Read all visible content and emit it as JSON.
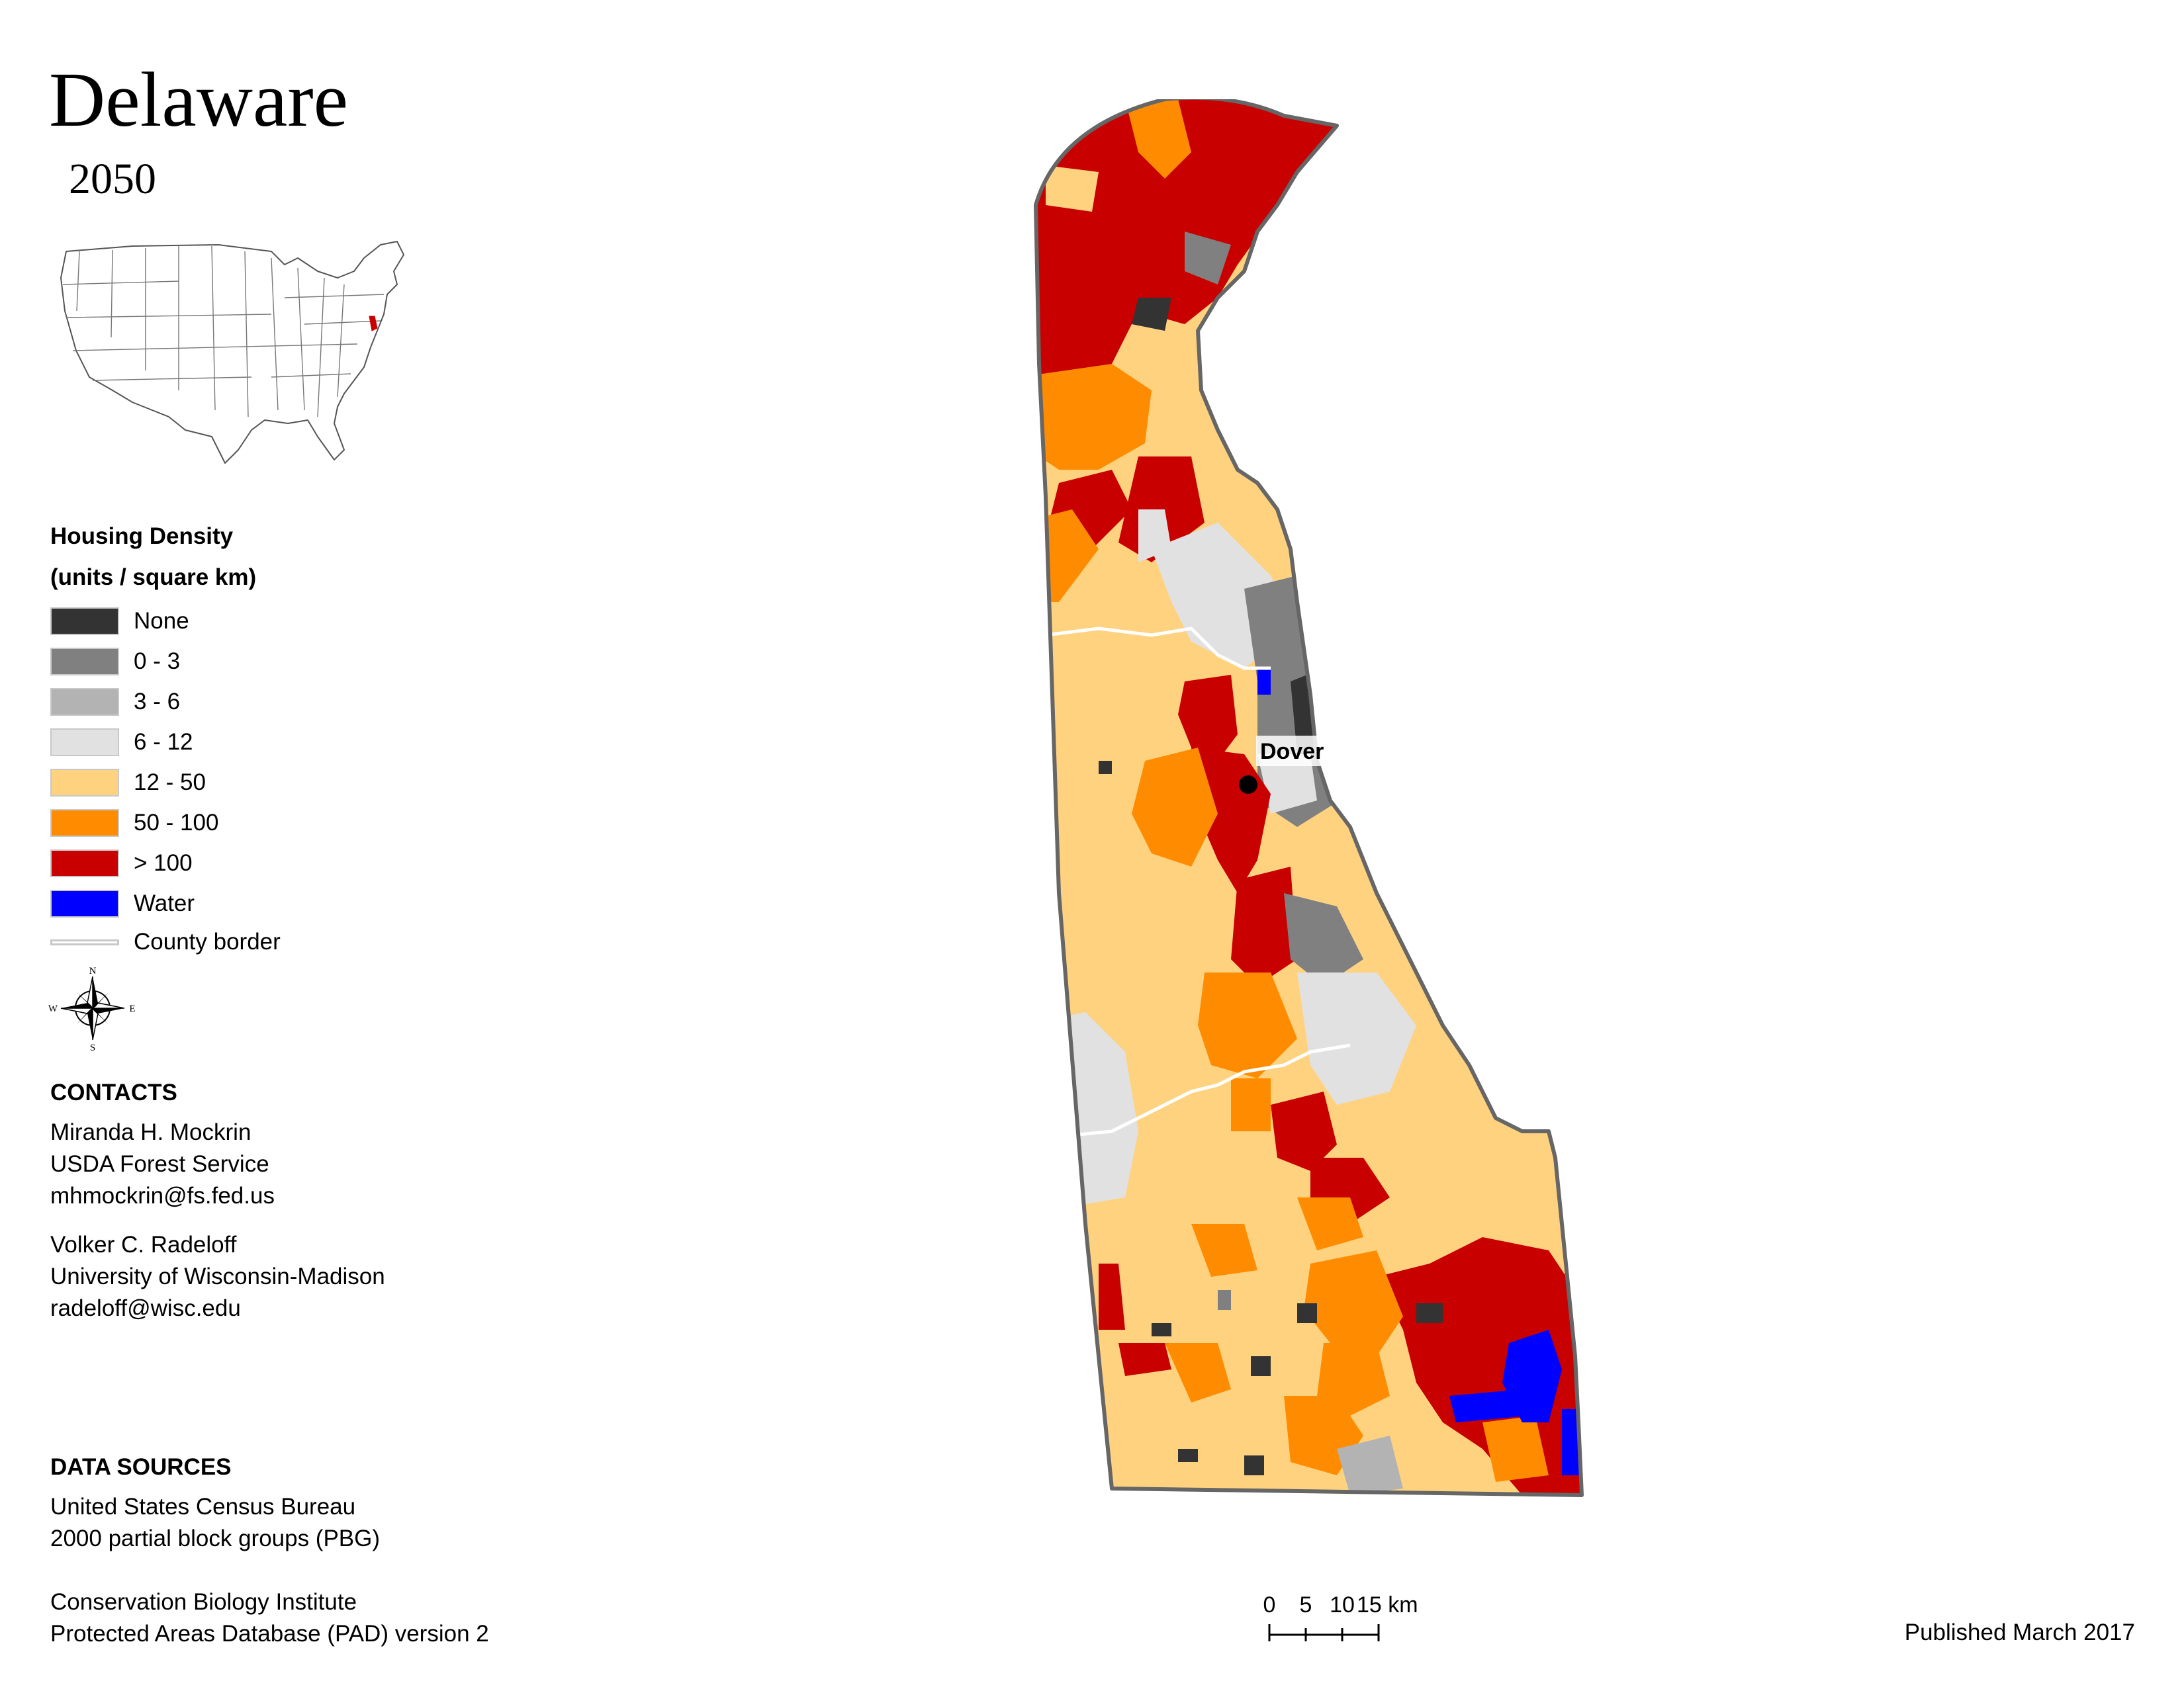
{
  "title": "Delaware",
  "subtitle": "2050",
  "legend": {
    "title_line1": "Housing Density",
    "title_line2": "(units / square km)",
    "items": [
      {
        "label": "None",
        "color": "#333333"
      },
      {
        "label": "0 - 3",
        "color": "#808080"
      },
      {
        "label": "3 - 6",
        "color": "#b3b3b3"
      },
      {
        "label": "6 - 12",
        "color": "#e1e1e1"
      },
      {
        "label": "12 - 50",
        "color": "#ffd280"
      },
      {
        "label": "50 - 100",
        "color": "#ff8c00"
      },
      {
        "label": "> 100",
        "color": "#c80000"
      },
      {
        "label": "Water",
        "color": "#0000ff"
      }
    ],
    "county_border_label": "County border"
  },
  "compass": {
    "n": "N",
    "s": "S",
    "e": "E",
    "w": "W"
  },
  "contacts": {
    "heading": "CONTACTS",
    "person1": {
      "name": "Miranda H. Mockrin",
      "org": "USDA Forest Service",
      "email": "mhmockrin@fs.fed.us"
    },
    "person2": {
      "name": "Volker C. Radeloff",
      "org": "University of Wisconsin-Madison",
      "email": "radeloff@wisc.edu"
    }
  },
  "data_sources": {
    "heading": "DATA SOURCES",
    "line1": "United States Census Bureau",
    "line2": "2000 partial block groups (PBG)",
    "line3": "Conservation Biology Institute",
    "line4": "Protected Areas Database (PAD) version 2"
  },
  "map": {
    "city_label": "Dover"
  },
  "scale": {
    "t0": "0",
    "t1": "5",
    "t2": "10",
    "t3": "15 km"
  },
  "published": "Published March 2017"
}
